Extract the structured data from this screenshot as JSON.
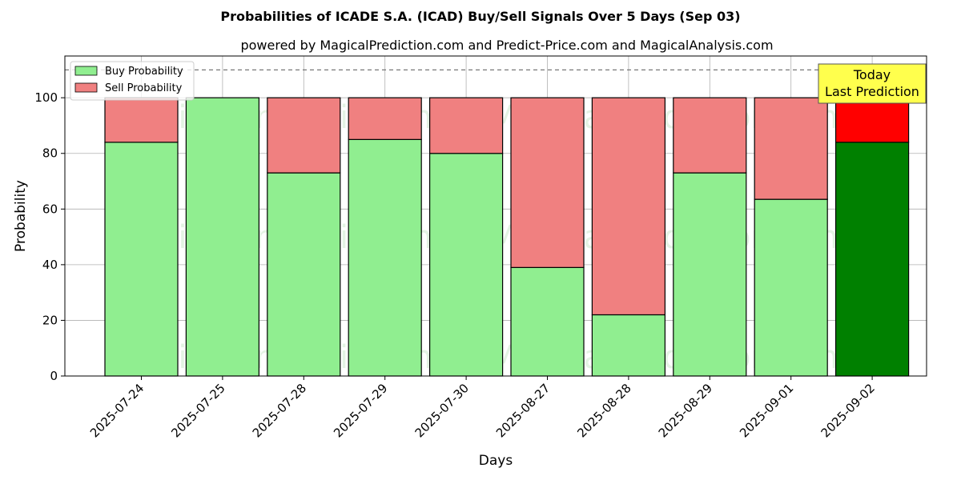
{
  "chart_data": {
    "type": "bar",
    "stacked": true,
    "title": "Probabilities of ICADE S.A. (ICAD) Buy/Sell Signals Over 5 Days (Sep 03)",
    "subtitle": "powered by MagicalPrediction.com and Predict-Price.com and MagicalAnalysis.com",
    "xlabel": "Days",
    "ylabel": "Probability",
    "ylim": [
      0,
      115
    ],
    "yticks": [
      0,
      20,
      40,
      60,
      80,
      100
    ],
    "grid": true,
    "legend_position": "top-left",
    "reference_line": 110,
    "categories": [
      "2025-07-24",
      "2025-07-25",
      "2025-07-28",
      "2025-07-29",
      "2025-07-30",
      "2025-08-27",
      "2025-08-28",
      "2025-08-29",
      "2025-09-01",
      "2025-09-02"
    ],
    "series": [
      {
        "name": "Buy Probability",
        "color": "#90ee90",
        "values": [
          84,
          100,
          73,
          85,
          80,
          39,
          22,
          73,
          63.5,
          84
        ]
      },
      {
        "name": "Sell Probability",
        "color": "#f08080",
        "values": [
          16,
          0,
          27,
          15,
          20,
          61,
          78,
          27,
          36.5,
          16
        ]
      }
    ],
    "highlight": {
      "index": 9,
      "buy_color": "#008000",
      "sell_color": "#ff0000"
    },
    "annotation": {
      "lines": [
        "Today",
        "Last Prediction"
      ],
      "background": "#ffff4d"
    },
    "watermarks": [
      "MagicalAnalysis.com",
      "MagicalPrediction.com"
    ]
  }
}
